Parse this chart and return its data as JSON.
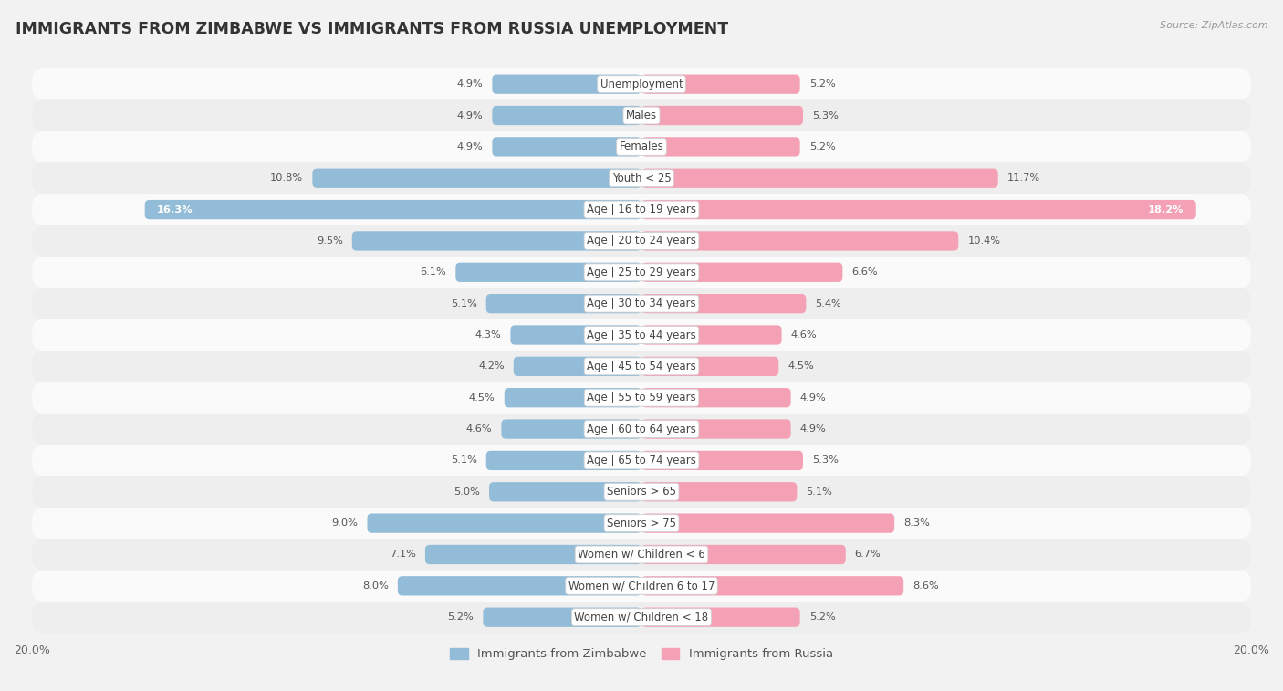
{
  "title": "IMMIGRANTS FROM ZIMBABWE VS IMMIGRANTS FROM RUSSIA UNEMPLOYMENT",
  "source": "Source: ZipAtlas.com",
  "categories": [
    "Unemployment",
    "Males",
    "Females",
    "Youth < 25",
    "Age | 16 to 19 years",
    "Age | 20 to 24 years",
    "Age | 25 to 29 years",
    "Age | 30 to 34 years",
    "Age | 35 to 44 years",
    "Age | 45 to 54 years",
    "Age | 55 to 59 years",
    "Age | 60 to 64 years",
    "Age | 65 to 74 years",
    "Seniors > 65",
    "Seniors > 75",
    "Women w/ Children < 6",
    "Women w/ Children 6 to 17",
    "Women w/ Children < 18"
  ],
  "zimbabwe_values": [
    4.9,
    4.9,
    4.9,
    10.8,
    16.3,
    9.5,
    6.1,
    5.1,
    4.3,
    4.2,
    4.5,
    4.6,
    5.1,
    5.0,
    9.0,
    7.1,
    8.0,
    5.2
  ],
  "russia_values": [
    5.2,
    5.3,
    5.2,
    11.7,
    18.2,
    10.4,
    6.6,
    5.4,
    4.6,
    4.5,
    4.9,
    4.9,
    5.3,
    5.1,
    8.3,
    6.7,
    8.6,
    5.2
  ],
  "zimbabwe_color": "#92bcd8",
  "russia_color": "#f4a0b5",
  "background_color": "#f2f2f2",
  "row_colors": [
    "#fafafa",
    "#eeeeee"
  ],
  "xlim": 20.0,
  "bar_height": 0.62,
  "title_fontsize": 12.5,
  "label_fontsize": 8.5,
  "value_fontsize": 8.2,
  "legend_fontsize": 9.5
}
